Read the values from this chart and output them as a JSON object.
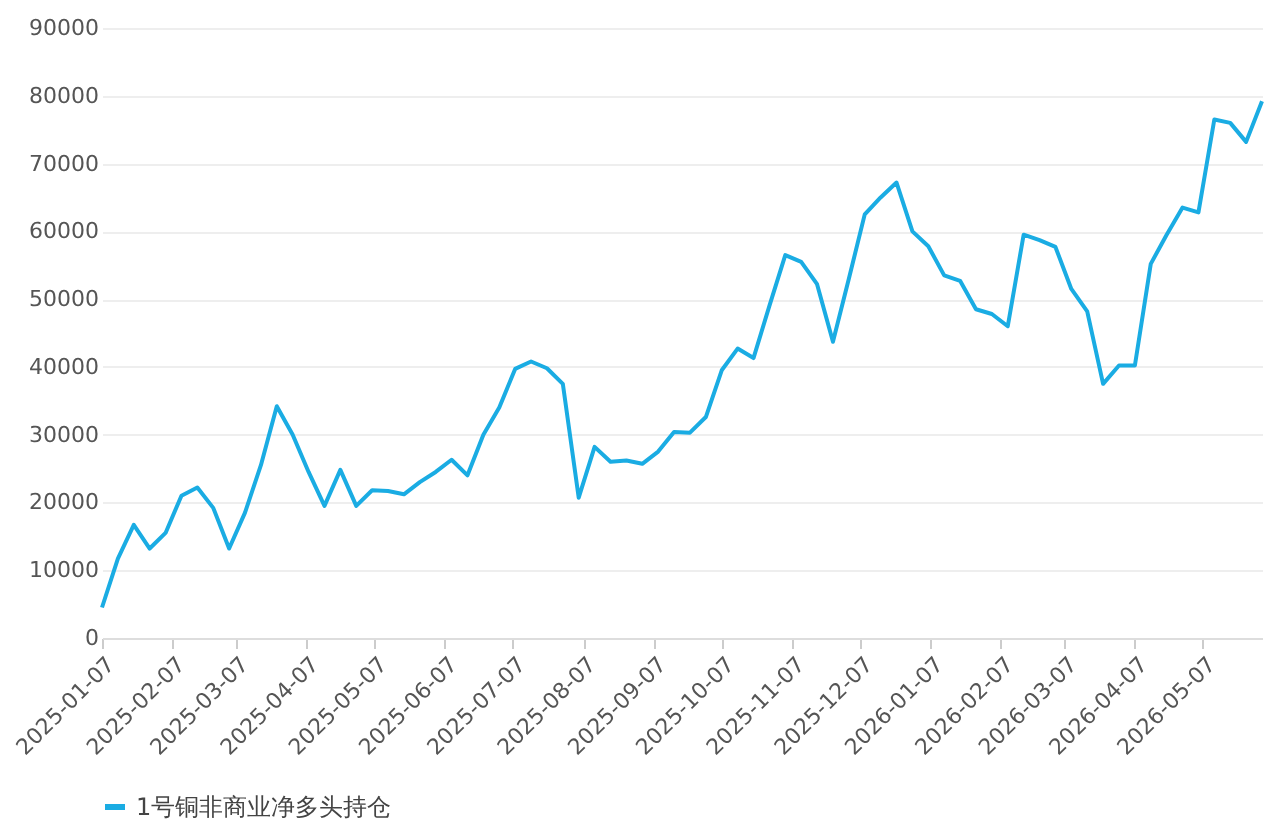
{
  "chart_data": {
    "type": "line",
    "x": [
      "2025-01-07",
      "2025-01-14",
      "2025-01-21",
      "2025-01-28",
      "2025-02-04",
      "2025-02-11",
      "2025-02-18",
      "2025-02-25",
      "2025-03-04",
      "2025-03-11",
      "2025-03-18",
      "2025-03-25",
      "2025-04-01",
      "2025-04-08",
      "2025-04-15",
      "2025-04-22",
      "2025-04-29",
      "2025-05-06",
      "2025-05-13",
      "2025-05-20",
      "2025-05-27",
      "2025-06-03",
      "2025-06-10",
      "2025-06-17",
      "2025-06-24",
      "2025-07-01",
      "2025-07-08",
      "2025-07-15",
      "2025-07-22",
      "2025-07-29",
      "2025-08-05",
      "2025-08-12",
      "2025-08-19",
      "2025-08-26",
      "2025-09-02",
      "2025-09-09",
      "2025-09-16",
      "2025-09-23",
      "2025-09-30",
      "2025-10-07",
      "2025-10-14",
      "2025-10-21",
      "2025-10-28",
      "2025-11-04",
      "2025-11-11",
      "2025-11-18",
      "2025-11-25",
      "2025-12-02",
      "2025-12-09",
      "2025-12-16",
      "2025-12-23",
      "2025-12-30",
      "2026-01-06",
      "2026-01-13",
      "2026-01-20",
      "2026-01-27",
      "2026-02-03",
      "2026-02-10",
      "2026-02-17",
      "2026-02-24",
      "2026-03-03",
      "2026-03-10",
      "2026-03-17",
      "2026-03-24",
      "2026-03-31",
      "2026-04-07",
      "2026-04-14",
      "2026-04-21",
      "2026-04-28",
      "2026-05-05",
      "2026-05-12",
      "2026-05-19",
      "2026-05-26",
      "2026-06-02"
    ],
    "series": [
      {
        "name": "1号铜非商业净多头持仓",
        "color": "#1aace3",
        "values": [
          4500,
          11700,
          16700,
          13200,
          15500,
          21000,
          22200,
          19200,
          13200,
          18500,
          25500,
          34200,
          30000,
          24500,
          19500,
          24800,
          19500,
          21800,
          21700,
          21200,
          23000,
          24500,
          26300,
          24000,
          30000,
          34000,
          39700,
          40800,
          39800,
          37500,
          20700,
          28200,
          26000,
          26200,
          25700,
          27500,
          30400,
          30300,
          32600,
          39500,
          42700,
          41300,
          49000,
          56500,
          55500,
          52200,
          43700,
          53000,
          62500,
          65000,
          67200,
          60000,
          57800,
          53500,
          52700,
          48500,
          47800,
          46000,
          59500,
          58700,
          57700,
          51500,
          48200,
          37500,
          40200,
          40200,
          55200,
          59500,
          63500,
          62800,
          76500,
          76000,
          73200,
          79200
        ]
      }
    ],
    "xlim": [
      "2025-01-07",
      "2026-06-02"
    ],
    "xticks": [
      "2025-01-07",
      "2025-02-07",
      "2025-03-07",
      "2025-04-07",
      "2025-05-07",
      "2025-06-07",
      "2025-07-07",
      "2025-08-07",
      "2025-09-07",
      "2025-10-07",
      "2025-11-07",
      "2025-12-07",
      "2026-01-07",
      "2026-02-07",
      "2026-03-07",
      "2026-04-07",
      "2026-05-07"
    ],
    "ylim": [
      0,
      90000
    ],
    "yticks": [
      0,
      10000,
      20000,
      30000,
      40000,
      50000,
      60000,
      70000,
      80000,
      90000
    ],
    "grid": "y",
    "legend": "bottom",
    "marker": "none",
    "line_style": "solid"
  }
}
